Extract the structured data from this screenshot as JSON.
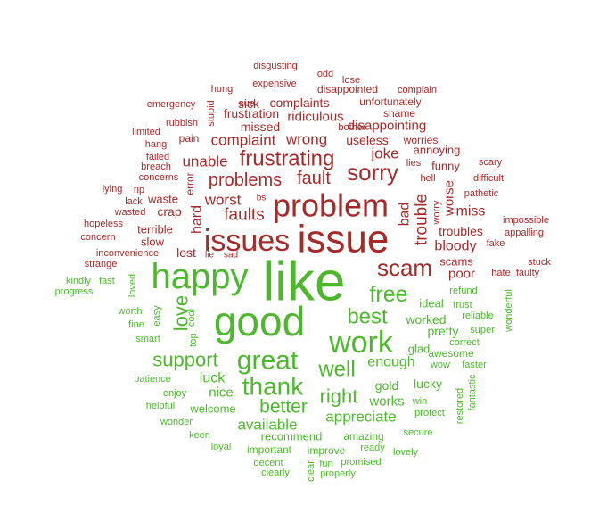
{
  "chart_data": {
    "type": "wordcloud",
    "title": "",
    "colors": {
      "negative": "#A52A2A",
      "positive": "#4DB82E"
    },
    "words": [
      {
        "text": "issue",
        "sentiment": "negative",
        "size": 44
      },
      {
        "text": "problem",
        "sentiment": "negative",
        "size": 36
      },
      {
        "text": "issues",
        "sentiment": "negative",
        "size": 34
      },
      {
        "text": "sorry",
        "sentiment": "negative",
        "size": 26
      },
      {
        "text": "scam",
        "sentiment": "negative",
        "size": 26
      },
      {
        "text": "frustrating",
        "sentiment": "negative",
        "size": 24
      },
      {
        "text": "fault",
        "sentiment": "negative",
        "size": 20
      },
      {
        "text": "problems",
        "sentiment": "negative",
        "size": 20
      },
      {
        "text": "faults",
        "sentiment": "negative",
        "size": 19
      },
      {
        "text": "trouble",
        "sentiment": "negative",
        "size": 19
      },
      {
        "text": "joke",
        "sentiment": "negative",
        "size": 17
      },
      {
        "text": "wrong",
        "sentiment": "negative",
        "size": 17
      },
      {
        "text": "unable",
        "sentiment": "negative",
        "size": 17
      },
      {
        "text": "complaint",
        "sentiment": "negative",
        "size": 17
      },
      {
        "text": "worst",
        "sentiment": "negative",
        "size": 17
      },
      {
        "text": "bloody",
        "sentiment": "negative",
        "size": 16
      },
      {
        "text": "hard",
        "sentiment": "negative",
        "size": 16
      },
      {
        "text": "bad",
        "sentiment": "negative",
        "size": 16
      },
      {
        "text": "miss",
        "sentiment": "negative",
        "size": 16
      },
      {
        "text": "worse",
        "sentiment": "negative",
        "size": 15
      },
      {
        "text": "poor",
        "sentiment": "negative",
        "size": 15
      },
      {
        "text": "disappointing",
        "sentiment": "negative",
        "size": 15
      },
      {
        "text": "ridiculous",
        "sentiment": "negative",
        "size": 15
      },
      {
        "text": "useless",
        "sentiment": "negative",
        "size": 14
      },
      {
        "text": "crap",
        "sentiment": "negative",
        "size": 14
      },
      {
        "text": "lost",
        "sentiment": "negative",
        "size": 14
      },
      {
        "text": "missed",
        "sentiment": "negative",
        "size": 14
      },
      {
        "text": "troubles",
        "sentiment": "negative",
        "size": 14
      },
      {
        "text": "frustration",
        "sentiment": "negative",
        "size": 14
      },
      {
        "text": "complaints",
        "sentiment": "negative",
        "size": 14
      },
      {
        "text": "sick",
        "sentiment": "negative",
        "size": 14
      },
      {
        "text": "slow",
        "sentiment": "negative",
        "size": 13
      },
      {
        "text": "terrible",
        "sentiment": "negative",
        "size": 13
      },
      {
        "text": "funny",
        "sentiment": "negative",
        "size": 13
      },
      {
        "text": "annoying",
        "sentiment": "negative",
        "size": 13
      },
      {
        "text": "waste",
        "sentiment": "negative",
        "size": 13
      },
      {
        "text": "scams",
        "sentiment": "negative",
        "size": 13
      },
      {
        "text": "shame",
        "sentiment": "negative",
        "size": 12
      },
      {
        "text": "unfortunately",
        "sentiment": "negative",
        "size": 12
      },
      {
        "text": "disappointed",
        "sentiment": "negative",
        "size": 12
      },
      {
        "text": "worries",
        "sentiment": "negative",
        "size": 12
      },
      {
        "text": "error",
        "sentiment": "negative",
        "size": 12
      },
      {
        "text": "pain",
        "sentiment": "negative",
        "size": 12
      },
      {
        "text": "sue",
        "sentiment": "negative",
        "size": 11
      },
      {
        "text": "expensive",
        "sentiment": "negative",
        "size": 11
      },
      {
        "text": "complain",
        "sentiment": "negative",
        "size": 11
      },
      {
        "text": "lose",
        "sentiment": "negative",
        "size": 11
      },
      {
        "text": "odd",
        "sentiment": "negative",
        "size": 11
      },
      {
        "text": "disgusting",
        "sentiment": "negative",
        "size": 11
      },
      {
        "text": "hung",
        "sentiment": "negative",
        "size": 11
      },
      {
        "text": "emergency",
        "sentiment": "negative",
        "size": 11
      },
      {
        "text": "rubbish",
        "sentiment": "negative",
        "size": 11
      },
      {
        "text": "stupid",
        "sentiment": "negative",
        "size": 11
      },
      {
        "text": "bother",
        "sentiment": "negative",
        "size": 11
      },
      {
        "text": "limited",
        "sentiment": "negative",
        "size": 11
      },
      {
        "text": "hang",
        "sentiment": "negative",
        "size": 11
      },
      {
        "text": "failed",
        "sentiment": "negative",
        "size": 11
      },
      {
        "text": "breach",
        "sentiment": "negative",
        "size": 11
      },
      {
        "text": "concerns",
        "sentiment": "negative",
        "size": 11
      },
      {
        "text": "lying",
        "sentiment": "negative",
        "size": 11
      },
      {
        "text": "rip",
        "sentiment": "negative",
        "size": 11
      },
      {
        "text": "lack",
        "sentiment": "negative",
        "size": 11
      },
      {
        "text": "wasted",
        "sentiment": "negative",
        "size": 11
      },
      {
        "text": "hopeless",
        "sentiment": "negative",
        "size": 11
      },
      {
        "text": "concern",
        "sentiment": "negative",
        "size": 11
      },
      {
        "text": "inconvenience",
        "sentiment": "negative",
        "size": 11
      },
      {
        "text": "strange",
        "sentiment": "negative",
        "size": 11
      },
      {
        "text": "lie",
        "sentiment": "negative",
        "size": 10
      },
      {
        "text": "sad",
        "sentiment": "negative",
        "size": 10
      },
      {
        "text": "bs",
        "sentiment": "negative",
        "size": 10
      },
      {
        "text": "lies",
        "sentiment": "negative",
        "size": 11
      },
      {
        "text": "hell",
        "sentiment": "negative",
        "size": 11
      },
      {
        "text": "worry",
        "sentiment": "negative",
        "size": 11
      },
      {
        "text": "scary",
        "sentiment": "negative",
        "size": 11
      },
      {
        "text": "difficult",
        "sentiment": "negative",
        "size": 11
      },
      {
        "text": "pathetic",
        "sentiment": "negative",
        "size": 11
      },
      {
        "text": "impossible",
        "sentiment": "negative",
        "size": 11
      },
      {
        "text": "appalling",
        "sentiment": "negative",
        "size": 11
      },
      {
        "text": "fake",
        "sentiment": "negative",
        "size": 11
      },
      {
        "text": "stuck",
        "sentiment": "negative",
        "size": 11
      },
      {
        "text": "hate",
        "sentiment": "negative",
        "size": 11
      },
      {
        "text": "faulty",
        "sentiment": "negative",
        "size": 11
      },
      {
        "text": "like",
        "sentiment": "positive",
        "size": 62
      },
      {
        "text": "good",
        "sentiment": "positive",
        "size": 46
      },
      {
        "text": "happy",
        "sentiment": "positive",
        "size": 40
      },
      {
        "text": "work",
        "sentiment": "positive",
        "size": 34
      },
      {
        "text": "great",
        "sentiment": "positive",
        "size": 30
      },
      {
        "text": "thank",
        "sentiment": "positive",
        "size": 28
      },
      {
        "text": "free",
        "sentiment": "positive",
        "size": 25
      },
      {
        "text": "best",
        "sentiment": "positive",
        "size": 24
      },
      {
        "text": "well",
        "sentiment": "positive",
        "size": 24
      },
      {
        "text": "love",
        "sentiment": "positive",
        "size": 22
      },
      {
        "text": "support",
        "sentiment": "positive",
        "size": 22
      },
      {
        "text": "right",
        "sentiment": "positive",
        "size": 22
      },
      {
        "text": "better",
        "sentiment": "positive",
        "size": 21
      },
      {
        "text": "available",
        "sentiment": "positive",
        "size": 17
      },
      {
        "text": "appreciate",
        "sentiment": "positive",
        "size": 17
      },
      {
        "text": "enough",
        "sentiment": "positive",
        "size": 16
      },
      {
        "text": "luck",
        "sentiment": "positive",
        "size": 16
      },
      {
        "text": "nice",
        "sentiment": "positive",
        "size": 15
      },
      {
        "text": "works",
        "sentiment": "positive",
        "size": 15
      },
      {
        "text": "gold",
        "sentiment": "positive",
        "size": 14
      },
      {
        "text": "lucky",
        "sentiment": "positive",
        "size": 14
      },
      {
        "text": "worked",
        "sentiment": "positive",
        "size": 14
      },
      {
        "text": "pretty",
        "sentiment": "positive",
        "size": 14
      },
      {
        "text": "ideal",
        "sentiment": "positive",
        "size": 13
      },
      {
        "text": "glad",
        "sentiment": "positive",
        "size": 13
      },
      {
        "text": "welcome",
        "sentiment": "positive",
        "size": 13
      },
      {
        "text": "recommend",
        "sentiment": "positive",
        "size": 13
      },
      {
        "text": "awesome",
        "sentiment": "positive",
        "size": 12
      },
      {
        "text": "amazing",
        "sentiment": "positive",
        "size": 12
      },
      {
        "text": "improve",
        "sentiment": "positive",
        "size": 12
      },
      {
        "text": "important",
        "sentiment": "positive",
        "size": 12
      },
      {
        "text": "wow",
        "sentiment": "positive",
        "size": 11
      },
      {
        "text": "faster",
        "sentiment": "positive",
        "size": 11
      },
      {
        "text": "refund",
        "sentiment": "positive",
        "size": 11
      },
      {
        "text": "trust",
        "sentiment": "positive",
        "size": 11
      },
      {
        "text": "reliable",
        "sentiment": "positive",
        "size": 11
      },
      {
        "text": "super",
        "sentiment": "positive",
        "size": 11
      },
      {
        "text": "correct",
        "sentiment": "positive",
        "size": 11
      },
      {
        "text": "wonderful",
        "sentiment": "positive",
        "size": 11
      },
      {
        "text": "fantastic",
        "sentiment": "positive",
        "size": 11
      },
      {
        "text": "restored",
        "sentiment": "positive",
        "size": 11
      },
      {
        "text": "win",
        "sentiment": "positive",
        "size": 11
      },
      {
        "text": "protect",
        "sentiment": "positive",
        "size": 11
      },
      {
        "text": "secure",
        "sentiment": "positive",
        "size": 11
      },
      {
        "text": "ready",
        "sentiment": "positive",
        "size": 11
      },
      {
        "text": "lovely",
        "sentiment": "positive",
        "size": 11
      },
      {
        "text": "promised",
        "sentiment": "positive",
        "size": 11
      },
      {
        "text": "fun",
        "sentiment": "positive",
        "size": 11
      },
      {
        "text": "properly",
        "sentiment": "positive",
        "size": 11
      },
      {
        "text": "clear",
        "sentiment": "positive",
        "size": 11
      },
      {
        "text": "clearly",
        "sentiment": "positive",
        "size": 11
      },
      {
        "text": "decent",
        "sentiment": "positive",
        "size": 11
      },
      {
        "text": "loyal",
        "sentiment": "positive",
        "size": 11
      },
      {
        "text": "keen",
        "sentiment": "positive",
        "size": 11
      },
      {
        "text": "wonder",
        "sentiment": "positive",
        "size": 11
      },
      {
        "text": "helpful",
        "sentiment": "positive",
        "size": 11
      },
      {
        "text": "enjoy",
        "sentiment": "positive",
        "size": 11
      },
      {
        "text": "patience",
        "sentiment": "positive",
        "size": 11
      },
      {
        "text": "smart",
        "sentiment": "positive",
        "size": 11
      },
      {
        "text": "top",
        "sentiment": "positive",
        "size": 11
      },
      {
        "text": "fine",
        "sentiment": "positive",
        "size": 11
      },
      {
        "text": "worth",
        "sentiment": "positive",
        "size": 11
      },
      {
        "text": "easy",
        "sentiment": "positive",
        "size": 11
      },
      {
        "text": "cool",
        "sentiment": "positive",
        "size": 11
      },
      {
        "text": "loved",
        "sentiment": "positive",
        "size": 11
      },
      {
        "text": "kindly",
        "sentiment": "positive",
        "size": 11
      },
      {
        "text": "fast",
        "sentiment": "positive",
        "size": 11
      },
      {
        "text": "progress",
        "sentiment": "positive",
        "size": 11
      }
    ]
  }
}
